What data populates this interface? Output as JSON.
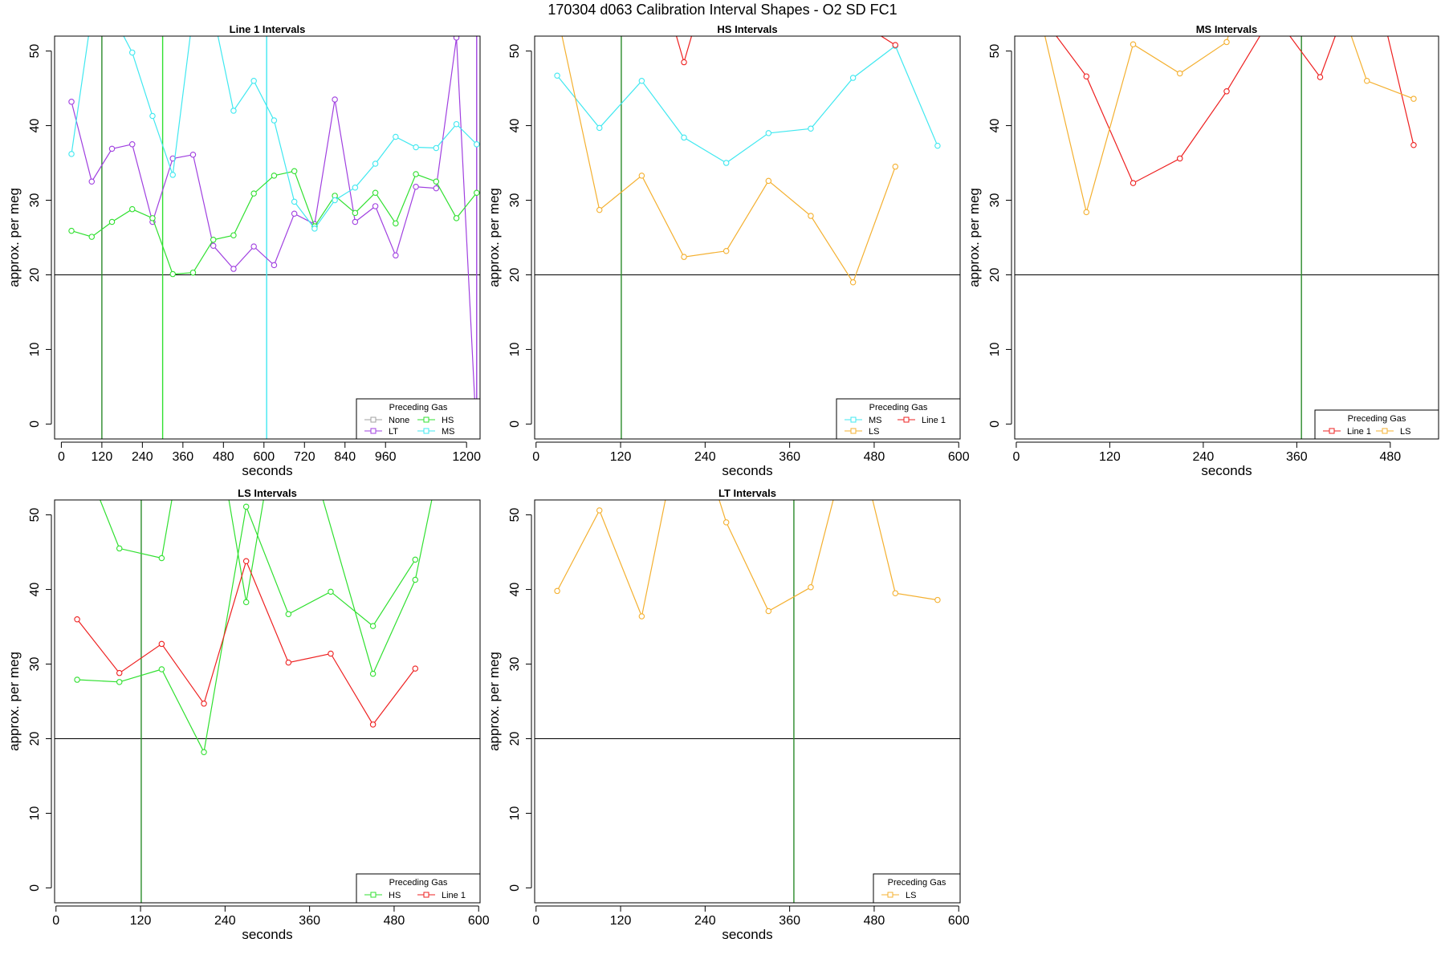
{
  "figure_title": "170304   d063   Calibration Interval Shapes - O2 SD FC1",
  "colors": {
    "None": "#a0a0a0",
    "LT": "#a040e0",
    "HS": "#30e030",
    "MS": "#40e8f0",
    "LS": "#f4b030",
    "Line 1": "#ee2020",
    "vline": "#2a8a2a"
  },
  "chart_data": [
    {
      "type": "line",
      "title": "Line 1 Intervals",
      "xlabel": "seconds",
      "ylabel": "approx. per meg",
      "xlim": [
        -20,
        1240
      ],
      "ylim": [
        -2,
        52
      ],
      "xticks": [
        0,
        120,
        240,
        360,
        480,
        600,
        720,
        840,
        960,
        1200
      ],
      "yticks": [
        0,
        10,
        20,
        30,
        40,
        50
      ],
      "hline": 20,
      "vlines": [
        {
          "x": 120,
          "color": "vline"
        },
        {
          "x": 300,
          "color": "HS"
        },
        {
          "x": 608,
          "color": "MS"
        },
        {
          "x": 1230,
          "color": "LT"
        }
      ],
      "legend": {
        "title": "Preceding Gas",
        "position": "bottom-right",
        "rows": [
          [
            "None",
            "HS"
          ],
          [
            "LT",
            "MS"
          ]
        ]
      },
      "series": [
        {
          "name": "None",
          "color": "None",
          "points": []
        },
        {
          "name": "LT",
          "color": "LT",
          "points": [
            [
              30,
              43.2
            ],
            [
              90,
              32.5
            ],
            [
              150,
              36.9
            ],
            [
              210,
              37.5
            ],
            [
              270,
              27.1
            ],
            [
              330,
              35.6
            ],
            [
              390,
              36.1
            ],
            [
              450,
              23.9
            ],
            [
              510,
              20.8
            ],
            [
              570,
              23.8
            ],
            [
              630,
              21.3
            ],
            [
              690,
              28.2
            ],
            [
              750,
              26.8
            ],
            [
              810,
              43.5
            ],
            [
              870,
              27.1
            ],
            [
              930,
              29.2
            ],
            [
              990,
              22.6
            ],
            [
              1050,
              31.8
            ],
            [
              1110,
              31.6
            ],
            [
              1170,
              51.8
            ],
            [
              1230,
              -2
            ]
          ]
        },
        {
          "name": "HS",
          "color": "HS",
          "points": [
            [
              30,
              25.9
            ],
            [
              90,
              25.1
            ],
            [
              150,
              27.1
            ],
            [
              210,
              28.8
            ],
            [
              270,
              27.6
            ],
            [
              330,
              20.1
            ],
            [
              390,
              20.3
            ],
            [
              450,
              24.7
            ],
            [
              510,
              25.3
            ],
            [
              570,
              30.9
            ],
            [
              630,
              33.3
            ],
            [
              690,
              33.9
            ],
            [
              750,
              26.5
            ],
            [
              810,
              30.6
            ],
            [
              870,
              28.3
            ],
            [
              930,
              31.0
            ],
            [
              990,
              26.9
            ],
            [
              1050,
              33.5
            ],
            [
              1110,
              32.5
            ],
            [
              1170,
              27.6
            ],
            [
              1230,
              31.0
            ]
          ]
        },
        {
          "name": "MS",
          "color": "MS",
          "points": [
            [
              30,
              36.2
            ],
            [
              90,
              55
            ],
            [
              150,
              55
            ],
            [
              210,
              49.8
            ],
            [
              270,
              41.3
            ],
            [
              330,
              33.4
            ],
            [
              390,
              55
            ],
            [
              450,
              55
            ],
            [
              510,
              42.0
            ],
            [
              570,
              46.0
            ],
            [
              630,
              40.7
            ],
            [
              690,
              29.8
            ],
            [
              750,
              26.2
            ],
            [
              810,
              30.0
            ],
            [
              870,
              31.7
            ],
            [
              930,
              34.9
            ],
            [
              990,
              38.5
            ],
            [
              1050,
              37.1
            ],
            [
              1110,
              37.0
            ],
            [
              1170,
              40.2
            ],
            [
              1230,
              37.5
            ]
          ]
        }
      ]
    },
    {
      "type": "line",
      "title": "HS Intervals",
      "xlabel": "seconds",
      "ylabel": "approx. per meg",
      "xlim": [
        -2,
        602
      ],
      "ylim": [
        -2,
        52
      ],
      "xticks": [
        0,
        120,
        240,
        360,
        480,
        600
      ],
      "yticks": [
        0,
        10,
        20,
        30,
        40,
        50
      ],
      "hline": 20,
      "vlines": [
        {
          "x": 121,
          "color": "vline"
        }
      ],
      "legend": {
        "title": "Preceding Gas",
        "position": "bottom-right",
        "rows": [
          [
            "MS",
            "Line 1"
          ],
          [
            "LS"
          ]
        ]
      },
      "series": [
        {
          "name": "MS",
          "color": "MS",
          "points": [
            [
              30,
              46.7
            ],
            [
              90,
              39.7
            ],
            [
              150,
              46.0
            ],
            [
              210,
              38.4
            ],
            [
              270,
              35.0
            ],
            [
              330,
              39.0
            ],
            [
              390,
              39.6
            ],
            [
              450,
              46.4
            ],
            [
              510,
              50.7
            ],
            [
              570,
              37.3
            ]
          ]
        },
        {
          "name": "LS",
          "color": "LS",
          "points": [
            [
              30,
              55
            ],
            [
              90,
              28.7
            ],
            [
              150,
              33.3
            ],
            [
              210,
              22.4
            ],
            [
              270,
              23.2
            ],
            [
              330,
              32.6
            ],
            [
              390,
              27.9
            ],
            [
              450,
              19.0
            ],
            [
              510,
              34.5
            ]
          ]
        },
        {
          "name": "Line 1",
          "color": "Line 1",
          "points": [
            [
              190,
              55
            ],
            [
              210,
              48.5
            ],
            [
              230,
              55
            ],
            [
              440,
              55
            ],
            [
              510,
              50.8
            ]
          ]
        }
      ]
    },
    {
      "type": "line",
      "title": "MS Intervals",
      "xlabel": "seconds",
      "ylabel": "approx. per meg",
      "xlim": [
        -2,
        542
      ],
      "ylim": [
        -2,
        52
      ],
      "xticks": [
        0,
        120,
        240,
        360,
        480
      ],
      "yticks": [
        0,
        10,
        20,
        30,
        40,
        50
      ],
      "hline": 20,
      "vlines": [
        {
          "x": 366,
          "color": "vline"
        }
      ],
      "legend": {
        "title": "Preceding Gas",
        "position": "bottom-right",
        "rows": [
          [
            "Line 1",
            "LS"
          ]
        ]
      },
      "series": [
        {
          "name": "Line 1",
          "color": "Line 1",
          "points": [
            [
              30,
              55
            ],
            [
              90,
              46.6
            ],
            [
              150,
              32.3
            ],
            [
              210,
              35.6
            ],
            [
              270,
              44.6
            ],
            [
              330,
              55
            ],
            [
              390,
              46.5
            ],
            [
              420,
              55
            ],
            [
              470,
              55
            ],
            [
              510,
              37.4
            ]
          ]
        },
        {
          "name": "LS",
          "color": "LS",
          "points": [
            [
              30,
              55
            ],
            [
              90,
              28.4
            ],
            [
              150,
              50.9
            ],
            [
              210,
              47.0
            ],
            [
              270,
              51.2
            ],
            [
              280,
              55
            ],
            [
              420,
              55
            ],
            [
              450,
              46.0
            ],
            [
              510,
              43.6
            ]
          ]
        }
      ]
    },
    {
      "type": "line",
      "title": "LS Intervals",
      "xlabel": "seconds",
      "ylabel": "approx. per meg",
      "xlim": [
        -2,
        602
      ],
      "ylim": [
        -2,
        52
      ],
      "xticks": [
        0,
        120,
        240,
        360,
        480,
        600
      ],
      "yticks": [
        0,
        10,
        20,
        30,
        40,
        50
      ],
      "hline": 20,
      "vlines": [
        {
          "x": 121,
          "color": "vline"
        }
      ],
      "legend": {
        "title": "Preceding Gas",
        "position": "bottom-right",
        "rows": [
          [
            "HS",
            "Line 1"
          ]
        ]
      },
      "series": [
        {
          "name": "HS",
          "color": "HS",
          "points": [
            [
              30,
              27.9
            ],
            [
              90,
              27.6
            ],
            [
              150,
              29.3
            ],
            [
              210,
              18.2
            ],
            [
              270,
              51.1
            ],
            [
              330,
              36.7
            ],
            [
              390,
              39.7
            ],
            [
              450,
              35.1
            ],
            [
              510,
              44.0
            ]
          ]
        },
        {
          "name": "HS",
          "color": "HS",
          "points": [
            [
              50,
              55
            ],
            [
              90,
              45.5
            ],
            [
              150,
              44.2
            ],
            [
              170,
              55
            ],
            [
              240,
              55
            ],
            [
              270,
              38.3
            ],
            [
              300,
              55
            ],
            [
              370,
              55
            ],
            [
              450,
              28.7
            ],
            [
              510,
              41.3
            ],
            [
              540,
              55
            ]
          ]
        },
        {
          "name": "Line 1",
          "color": "Line 1",
          "points": [
            [
              30,
              36.0
            ],
            [
              90,
              28.8
            ],
            [
              150,
              32.7
            ],
            [
              210,
              24.7
            ],
            [
              270,
              43.8
            ],
            [
              330,
              30.2
            ],
            [
              390,
              31.4
            ],
            [
              450,
              21.9
            ],
            [
              510,
              29.4
            ]
          ]
        }
      ]
    },
    {
      "type": "line",
      "title": "LT Intervals",
      "xlabel": "seconds",
      "ylabel": "approx. per meg",
      "xlim": [
        -2,
        602
      ],
      "ylim": [
        -2,
        52
      ],
      "xticks": [
        0,
        120,
        240,
        360,
        480,
        600
      ],
      "yticks": [
        0,
        10,
        20,
        30,
        40,
        50
      ],
      "hline": 20,
      "vlines": [
        {
          "x": 366,
          "color": "vline"
        }
      ],
      "legend": {
        "title": "Preceding Gas",
        "position": "bottom-right",
        "rows": [
          [
            "LS"
          ]
        ]
      },
      "series": [
        {
          "name": "LS",
          "color": "LS",
          "points": [
            [
              30,
              39.8
            ],
            [
              90,
              50.6
            ],
            [
              150,
              36.4
            ],
            [
              190,
              55
            ],
            [
              250,
              55
            ],
            [
              270,
              49.0
            ],
            [
              330,
              37.1
            ],
            [
              390,
              40.3
            ],
            [
              430,
              55
            ],
            [
              470,
              55
            ],
            [
              510,
              39.5
            ],
            [
              570,
              38.6
            ]
          ]
        }
      ]
    }
  ]
}
